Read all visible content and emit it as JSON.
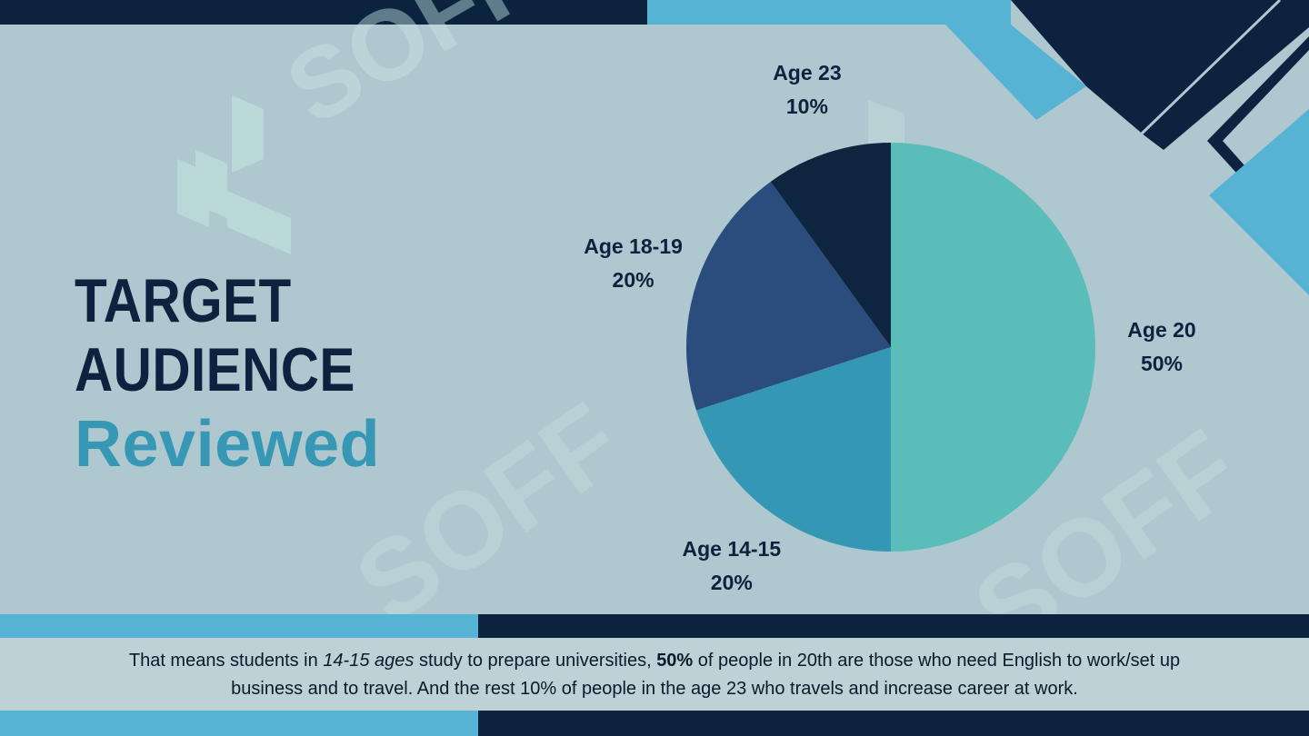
{
  "title": {
    "line1": "TARGET",
    "line2": "AUDIENCE",
    "line3": "Reviewed"
  },
  "watermark": "SOFF",
  "colors": {
    "background": "#afc7ce",
    "navy": "#0c2340",
    "sky": "#57b3d4",
    "accent": "#3798b5"
  },
  "chart_data": {
    "type": "pie",
    "start_angle_deg": 0,
    "direction": "clockwise",
    "slices": [
      {
        "label": "Age 20",
        "value": 50,
        "value_label": "50%",
        "color": "#5bbdba"
      },
      {
        "label": "Age 14-15",
        "value": 20,
        "value_label": "20%",
        "color": "#3498b5"
      },
      {
        "label": "Age 18-19",
        "value": 20,
        "value_label": "20%",
        "color": "#2a4d7e"
      },
      {
        "label": "Age 23",
        "value": 10,
        "value_label": "10%",
        "color": "#0e2540"
      }
    ]
  },
  "caption": {
    "p1": "That means students in ",
    "p2": "14-15 ages",
    "p3": " study to prepare universities, ",
    "p4": "50%",
    "p5": " of people in 20th are those who need English to work/set up business and to travel. And the rest 10% of people in the age 23 who travels and increase career at work."
  }
}
